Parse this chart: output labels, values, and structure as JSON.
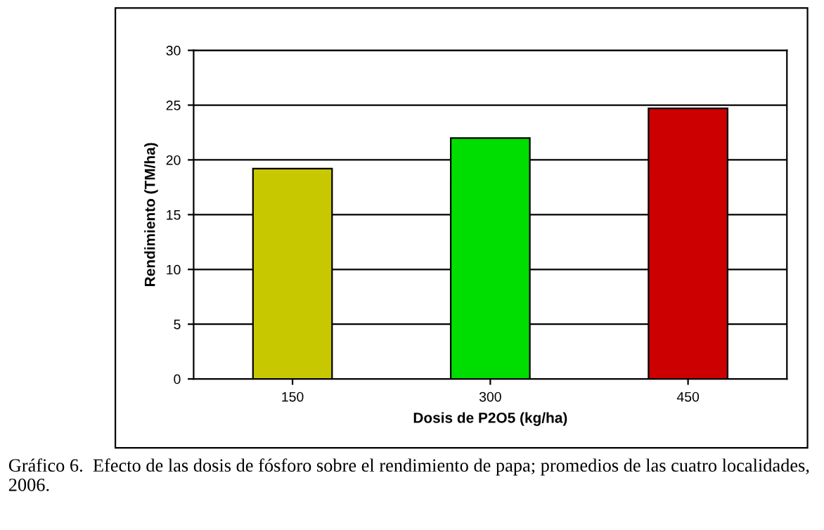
{
  "chart_data": {
    "type": "bar",
    "xlabel": "Dosis de P2O5 (kg/ha)",
    "ylabel": "Rendimiento (TM/ha)",
    "categories": [
      "150",
      "300",
      "450"
    ],
    "values": [
      19.2,
      22.0,
      24.7
    ],
    "colors": [
      "#c8c800",
      "#00dd00",
      "#cc0000"
    ],
    "ylim": [
      0,
      30
    ],
    "yticks": [
      0,
      5,
      10,
      15,
      20,
      25,
      30
    ],
    "grid": "y",
    "annotations": [
      "Gráfico 6.  Efecto de las dosis de fósforo sobre el rendimiento de papa; promedios de las cuatro localidades, 2006."
    ]
  }
}
